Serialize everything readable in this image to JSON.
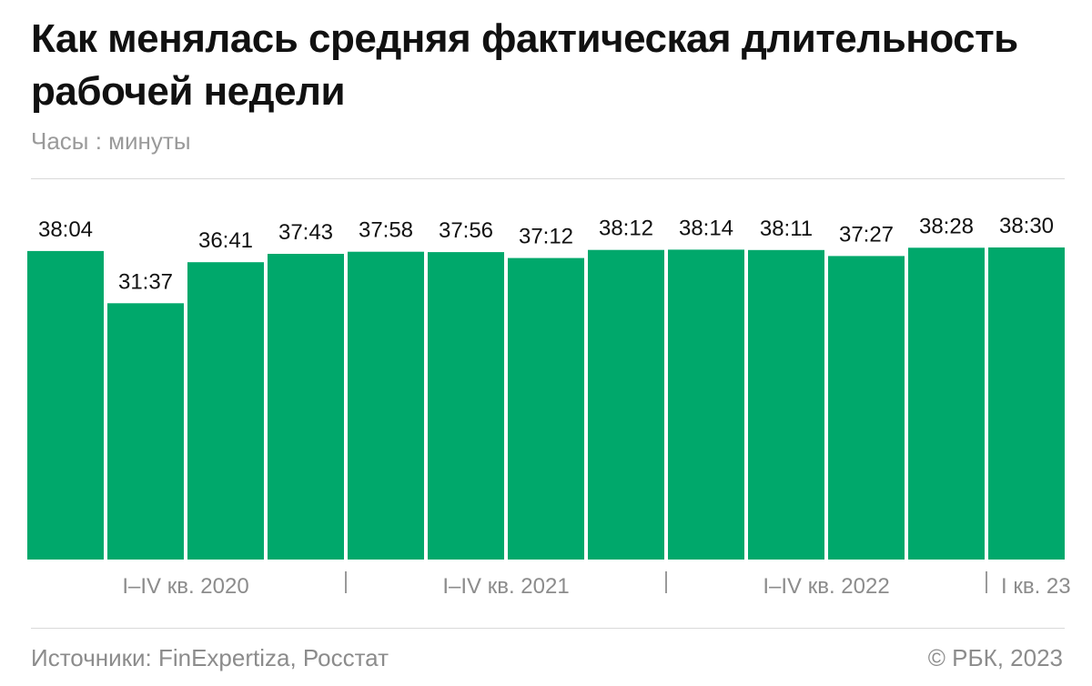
{
  "header": {
    "title": "Как менялась средняя фактическая длительность рабочей недели",
    "subtitle": "Часы : минуты"
  },
  "footer": {
    "source": "Источники: FinExpertiza, Росстат",
    "copyright": "© РБК, 2023"
  },
  "colors": {
    "bar": "#00a86b",
    "text": "#111111",
    "muted": "#8c8c8c",
    "separator": "#9a9a9a"
  },
  "chart_data": {
    "type": "bar",
    "unit": "Часы : минуты",
    "labels": [
      "38:04",
      "31:37",
      "36:41",
      "37:43",
      "37:58",
      "37:56",
      "37:12",
      "38:12",
      "38:14",
      "38:11",
      "37:27",
      "38:28",
      "38:30"
    ],
    "values": [
      38.067,
      31.617,
      36.683,
      37.717,
      37.967,
      37.933,
      37.2,
      38.2,
      38.233,
      38.183,
      37.45,
      38.467,
      38.5
    ],
    "groups": [
      {
        "label": "I–IV кв. 2020",
        "count": 4
      },
      {
        "label": "I–IV кв. 2021",
        "count": 4
      },
      {
        "label": "I–IV кв. 2022",
        "count": 4
      },
      {
        "label": "I кв. 23",
        "count": 1
      }
    ],
    "ylim": [
      0,
      38.5
    ],
    "grid": false,
    "legend": "none"
  }
}
